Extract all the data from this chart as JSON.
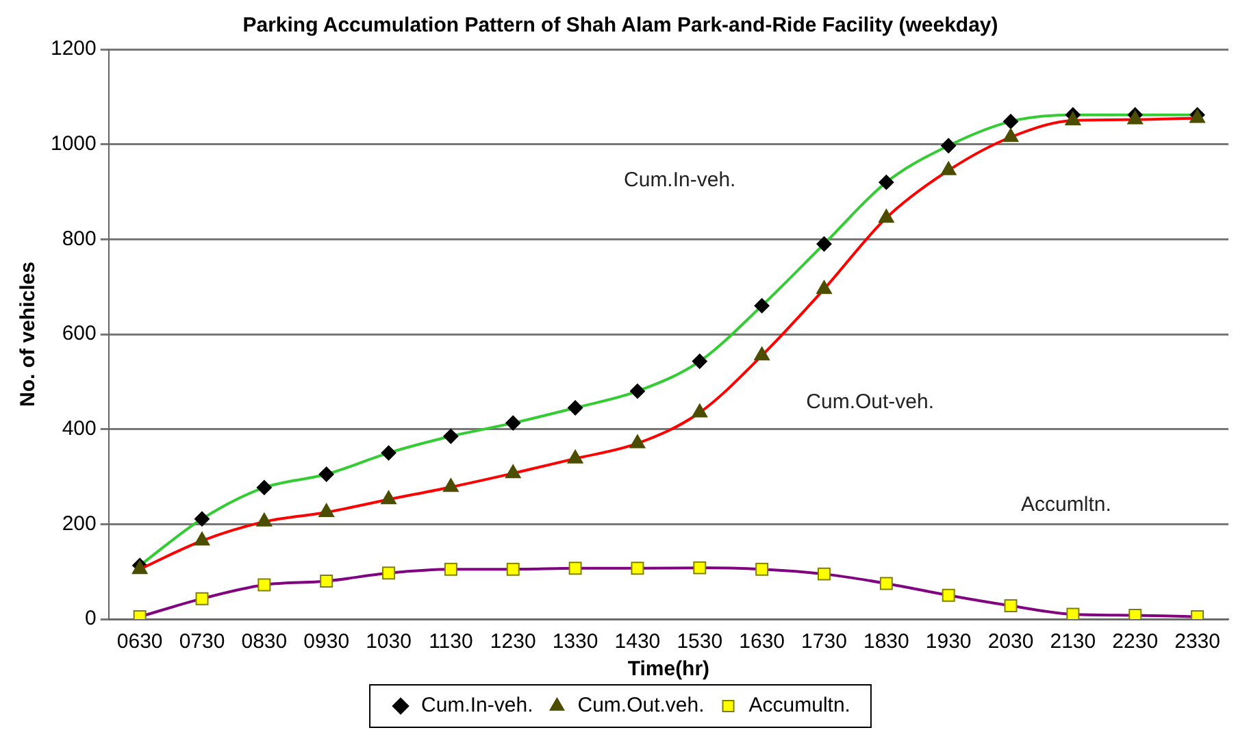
{
  "chart_data": {
    "type": "line",
    "title": "Parking Accumulation Pattern of Shah Alam Park-and-Ride Facility (weekday)",
    "xlabel": "Time(hr)",
    "ylabel": "No. of vehicles",
    "categories": [
      "0630",
      "0730",
      "0830",
      "0930",
      "1030",
      "1130",
      "1230",
      "1330",
      "1430",
      "1530",
      "1630",
      "1730",
      "1830",
      "1930",
      "2030",
      "2130",
      "2230",
      "2330"
    ],
    "series": [
      {
        "name": "Cum.In-veh.",
        "color": "#33cc33",
        "marker": "diamond",
        "values": [
          113,
          211,
          277,
          305,
          350,
          385,
          413,
          445,
          480,
          543,
          660,
          790,
          920,
          997,
          1048,
          1062,
          1062,
          1062
        ]
      },
      {
        "name": "Cum.Out.veh.",
        "color": "#ff0000",
        "marker": "triangle",
        "values": [
          105,
          165,
          205,
          225,
          252,
          278,
          307,
          338,
          370,
          435,
          555,
          695,
          845,
          945,
          1015,
          1050,
          1052,
          1055
        ]
      },
      {
        "name": "Accumultn.",
        "color": "#800080",
        "marker": "square",
        "values": [
          5,
          43,
          72,
          80,
          97,
          105,
          105,
          107,
          107,
          108,
          105,
          95,
          75,
          50,
          28,
          10,
          8,
          5
        ]
      }
    ],
    "ylim": [
      0,
      1200
    ],
    "yticks": [
      0,
      200,
      400,
      600,
      800,
      1000,
      1200
    ],
    "grid": "y",
    "legend": "bottom",
    "annotations": [
      "Cum.In-veh.",
      "Cum.Out-veh.",
      "Accumltn."
    ]
  }
}
